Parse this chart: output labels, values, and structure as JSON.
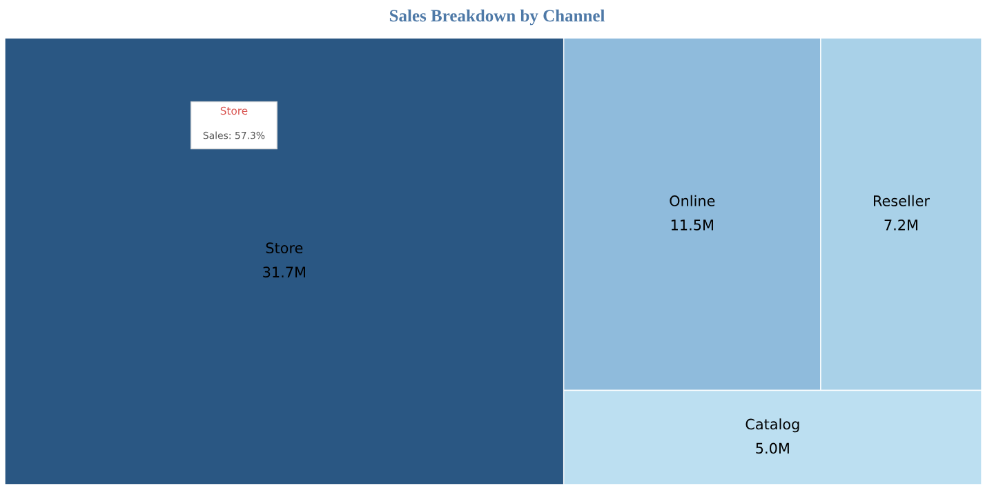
{
  "chart_data": {
    "type": "other",
    "title": "Sales Breakdown by Channel",
    "categories": [
      "Store",
      "Online",
      "Reseller",
      "Catalog"
    ],
    "values": [
      31.7,
      11.5,
      7.2,
      5.0
    ],
    "value_labels": [
      "31.7M",
      "11.5M",
      "7.2M",
      "5.0M"
    ],
    "colors": [
      "#2a5783",
      "#8fbbdc",
      "#a9d1e8",
      "#bcdff1"
    ],
    "annotations": [
      "Store",
      "Sales: 57.3%"
    ]
  }
}
